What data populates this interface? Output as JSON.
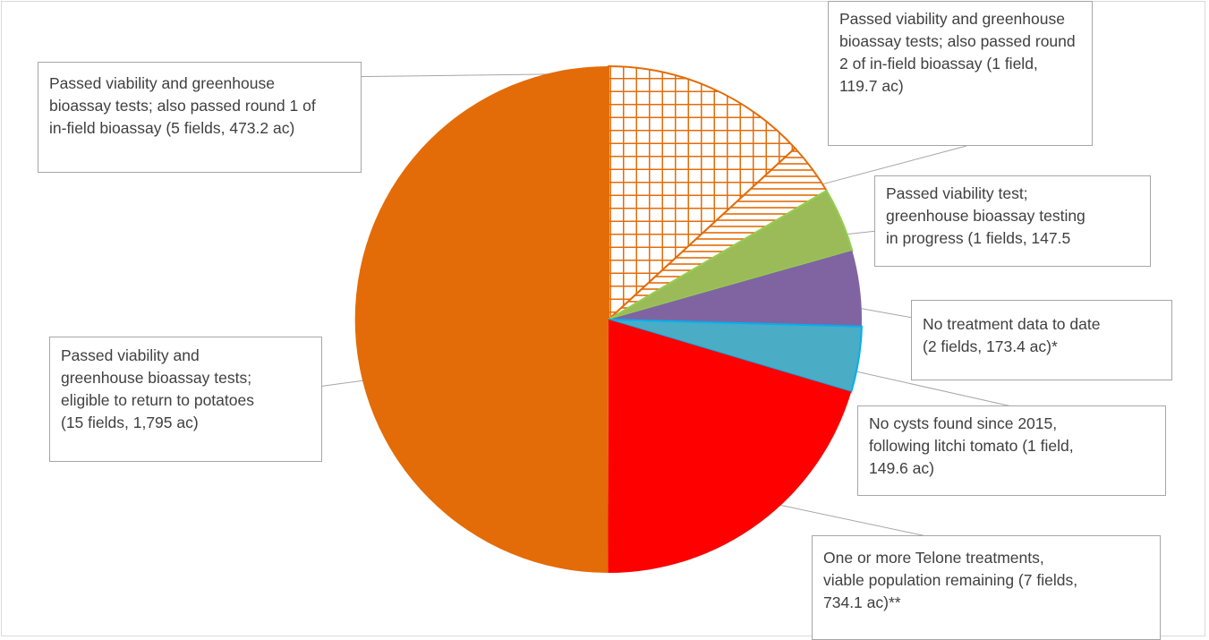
{
  "chart_data": {
    "type": "pie",
    "title": "",
    "slices": [
      {
        "label": "Passed viability and greenhouse bioassay tests; eligible to return to potatoes (15 fields, 1,795 ac)",
        "value": 1795,
        "color": "#e36c09",
        "pattern": "solid"
      },
      {
        "label": "Passed viability and greenhouse bioassay tests; also passed round 1 of in-field bioassay (5 fields, 473.2 ac)",
        "value": 473.2,
        "color": "#e36c09",
        "pattern": "grid"
      },
      {
        "label": "Passed viability and greenhouse bioassay tests; also passed round 2 of in-field bioassay (1 field, 119.7 ac)",
        "value": 119.7,
        "color": "#e36c09",
        "pattern": "horizontal-lines"
      },
      {
        "label": "Passed viability test; greenhouse bioassay testing in progress (1 fields, 147.5",
        "value": 147.5,
        "color": "#9bbb59",
        "pattern": "solid"
      },
      {
        "label": "No treatment data to date (2 fields, 173.4 ac)*",
        "value": 173.4,
        "color": "#8064a2",
        "pattern": "solid"
      },
      {
        "label": "No cysts found since 2015, following litchi tomato (1 field, 149.6 ac)",
        "value": 149.6,
        "color": "#4bacc6",
        "pattern": "solid"
      },
      {
        "label": "One or more Telone treatments, viable population remaining (7 fields, 734.1 ac)**",
        "value": 734.1,
        "color": "#ff0000",
        "pattern": "solid"
      }
    ],
    "legend": "none",
    "data_labels": "callouts"
  },
  "callouts": {
    "round1_lines": [
      "Passed viability and greenhouse",
      "bioassay tests; also passed round 1 of",
      "in-field bioassay (5 fields, 473.2 ac)"
    ],
    "round2_lines": [
      "Passed viability and greenhouse",
      "bioassay tests; also passed round",
      "2 of in-field bioassay (1 field,",
      "119.7 ac)"
    ],
    "viability_lines": [
      "Passed viability test;",
      "greenhouse bioassay testing",
      "in progress (1 fields, 147.5"
    ],
    "no_treatment_lines": [
      "No treatment data to date",
      "(2 fields, 173.4 ac)*"
    ],
    "no_cysts_lines": [
      "No cysts found since 2015,",
      "following litchi tomato (1 field,",
      "149.6 ac)"
    ],
    "telone_lines": [
      "One or more Telone treatments,",
      "viable population remaining (7 fields,",
      "734.1 ac)**"
    ],
    "eligible_lines": [
      "Passed viability and",
      "greenhouse bioassay tests;",
      "eligible to return to potatoes",
      "(15 fields, 1,795 ac)"
    ]
  }
}
